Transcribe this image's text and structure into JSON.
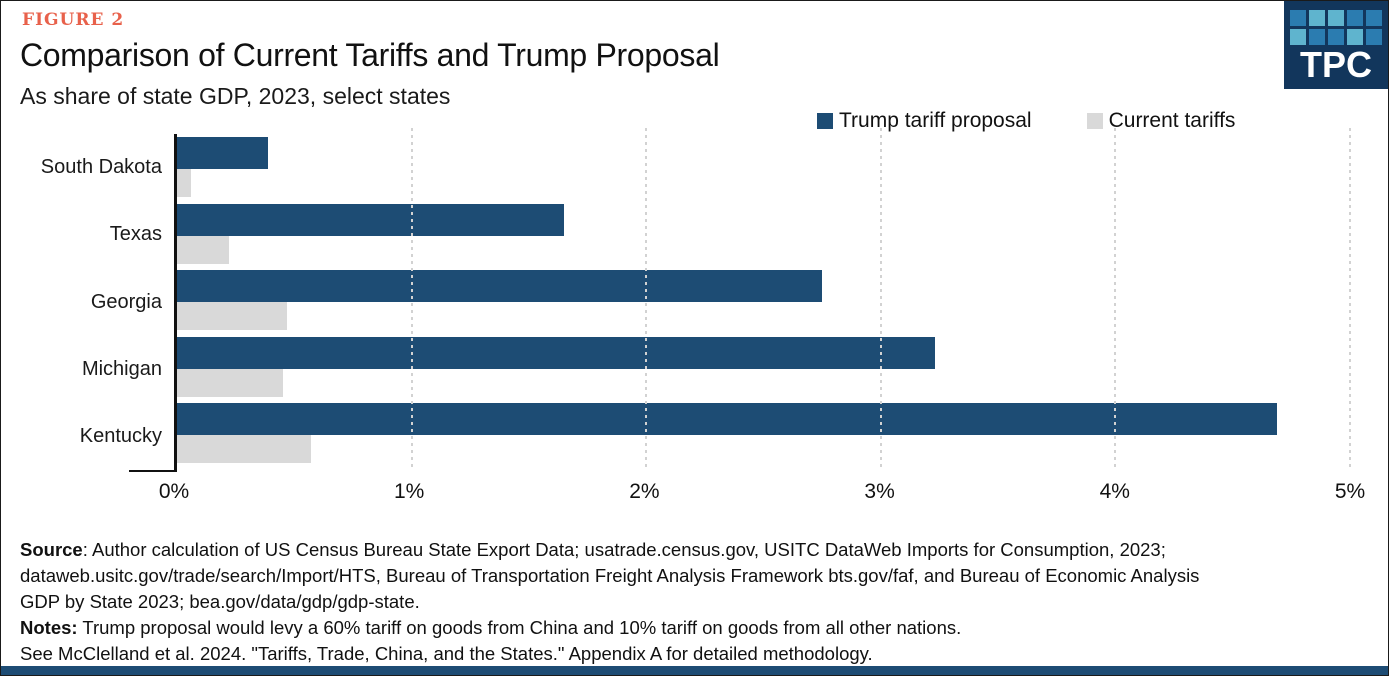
{
  "header": {
    "figure_label": "FIGURE 2",
    "title": "Comparison of Current Tariffs and Trump Proposal",
    "subtitle": "As share of state GDP, 2023, select states"
  },
  "logo": {
    "text": "TPC",
    "background": "#12365c",
    "square_colors": [
      [
        "#2b7cb0",
        "#5fb4ce",
        "#5fb4ce",
        "#2b7cb0",
        "#2b7cb0"
      ],
      [
        "#5fb4ce",
        "#2b7cb0",
        "#2b7cb0",
        "#5fb4ce",
        "#2b7cb0"
      ]
    ]
  },
  "legend": {
    "items": [
      {
        "label": "Trump tariff proposal",
        "color": "#1d4c74"
      },
      {
        "label": "Current tariffs",
        "color": "#d9d9d9"
      }
    ]
  },
  "chart_data": {
    "type": "bar",
    "orientation": "horizontal",
    "title": "Comparison of Current Tariffs and Trump Proposal",
    "subtitle": "As share of state GDP, 2023, select states",
    "categories": [
      "South Dakota",
      "Texas",
      "Georgia",
      "Michigan",
      "Kentucky"
    ],
    "series": [
      {
        "name": "Trump tariff proposal",
        "color": "#1d4c74",
        "values": [
          0.39,
          1.65,
          2.75,
          3.23,
          4.69
        ]
      },
      {
        "name": "Current tariffs",
        "color": "#d9d9d9",
        "values": [
          0.06,
          0.22,
          0.47,
          0.45,
          0.57
        ]
      }
    ],
    "xlabel": "",
    "ylabel": "",
    "xlim": [
      0,
      5
    ],
    "x_ticks": [
      "0%",
      "1%",
      "2%",
      "3%",
      "4%",
      "5%"
    ],
    "grid": "vertical-dotted",
    "legend_position": "top-right"
  },
  "footer": {
    "lines": [
      {
        "bold": "Source",
        "text": ": Author calculation of US Census Bureau State Export Data; usatrade.census.gov, USITC DataWeb Imports for Consumption, 2023;"
      },
      {
        "bold": "",
        "text": "dataweb.usitc.gov/trade/search/Import/HTS, Bureau of Transportation Freight Analysis Framework bts.gov/faf, and Bureau of Economic Analysis"
      },
      {
        "bold": "",
        "text": "GDP by State 2023; bea.gov/data/gdp/gdp-state."
      },
      {
        "bold": "Notes:",
        "text": " Trump proposal would levy a 60% tariff on goods from China and 10% tariff on goods from all other nations."
      },
      {
        "bold": "",
        "text": "See McClelland et al. 2024. \"Tariffs, Trade, China, and the States.\" Appendix A for detailed methodology."
      }
    ]
  },
  "colors": {
    "accent_red": "#e8614b",
    "bar_navy": "#1d4c74",
    "bar_gray": "#d9d9d9",
    "bottom_bar": "#1d4c74",
    "gridline": "#d2d2d2"
  }
}
